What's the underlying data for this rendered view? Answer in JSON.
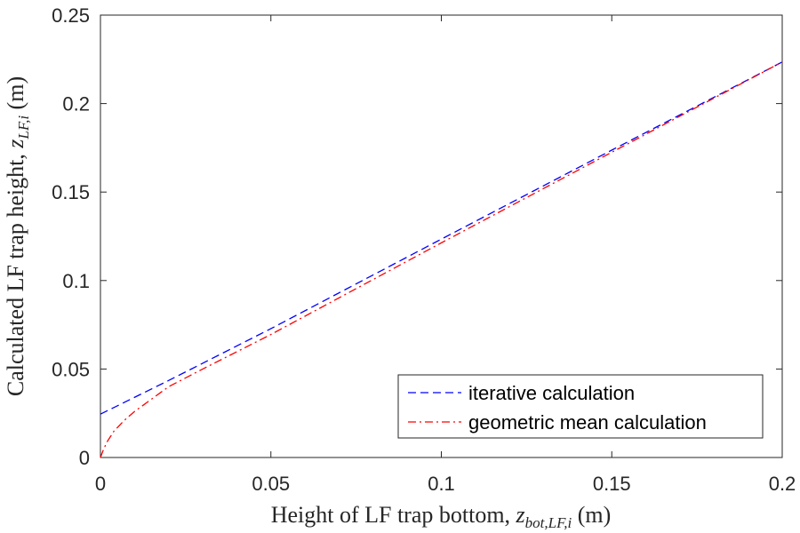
{
  "chart_data": {
    "type": "line",
    "title": "",
    "xlabel": {
      "prefix": "Height of LF trap bottom, ",
      "symbol": "z",
      "subscript": "bot,LF,i",
      "suffix": " (m)"
    },
    "ylabel": {
      "prefix": "Calculated LF trap height, ",
      "symbol": "z",
      "subscript": "LF,i",
      "suffix": " (m)"
    },
    "xlim": [
      0,
      0.2
    ],
    "ylim": [
      0,
      0.25
    ],
    "xticks": [
      0,
      0.05,
      0.1,
      0.15,
      0.2
    ],
    "xtick_labels": [
      "0",
      "0.05",
      "0.1",
      "0.15",
      "0.2"
    ],
    "yticks": [
      0,
      0.05,
      0.1,
      0.15,
      0.2,
      0.25
    ],
    "ytick_labels": [
      "0",
      "0.05",
      "0.1",
      "0.15",
      "0.2",
      "0.25"
    ],
    "grid": false,
    "legend_position": "bottom-right",
    "series": [
      {
        "name": "iterative calculation",
        "color": "#0000ff",
        "style": "dashed",
        "x": [
          0,
          0.02,
          0.05,
          0.1,
          0.15,
          0.2
        ],
        "y": [
          0.0245,
          0.0435,
          0.0728,
          0.1234,
          0.1737,
          0.2235
        ]
      },
      {
        "name": "geometric mean calculation",
        "color": "#ff0000",
        "style": "dashdot",
        "x": [
          0,
          0.001,
          0.002,
          0.003,
          0.004,
          0.005,
          0.007,
          0.01,
          0.015,
          0.02,
          0.03,
          0.05,
          0.1,
          0.15,
          0.2
        ],
        "y": [
          0,
          0.005,
          0.009,
          0.012,
          0.015,
          0.017,
          0.021,
          0.026,
          0.033,
          0.04,
          0.05,
          0.0695,
          0.1213,
          0.1725,
          0.2235
        ]
      }
    ]
  }
}
